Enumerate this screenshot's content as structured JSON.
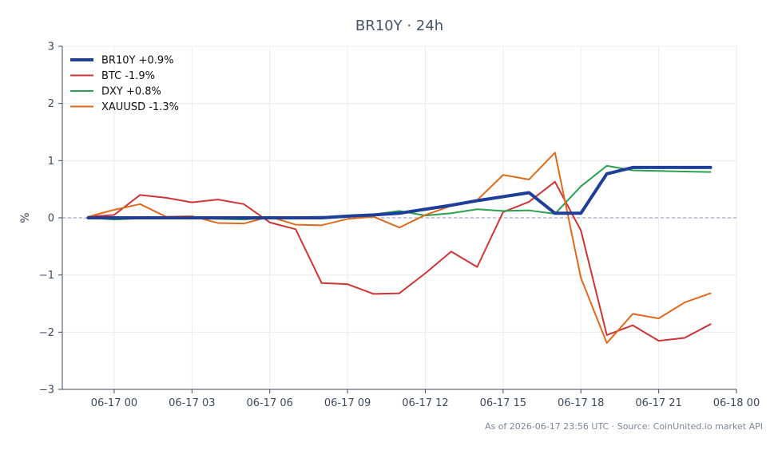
{
  "chart_data": {
    "type": "line",
    "title": "BR10Y · 24h",
    "xlabel": "",
    "ylabel": "%",
    "ylim": [
      -3,
      3
    ],
    "yticks": [
      -3,
      -2,
      -1,
      0,
      1,
      2,
      3
    ],
    "ytick_labels": [
      "−3",
      "−2",
      "−1",
      "0",
      "1",
      "2",
      "3"
    ],
    "xlim": [
      "2026-06-16 22:00",
      "2026-06-18 00:00"
    ],
    "xticks": [
      "2026-06-17 00:00",
      "2026-06-17 03:00",
      "2026-06-17 06:00",
      "2026-06-17 09:00",
      "2026-06-17 12:00",
      "2026-06-17 15:00",
      "2026-06-17 18:00",
      "2026-06-17 21:00",
      "2026-06-18 00:00"
    ],
    "xtick_labels": [
      "06-17 00",
      "06-17 03",
      "06-17 06",
      "06-17 09",
      "06-17 12",
      "06-17 15",
      "06-17 18",
      "06-17 21",
      "06-18 00"
    ],
    "grid": true,
    "zero_line": true,
    "legend_position": "top-left",
    "x": [
      "2026-06-16 23:00",
      "2026-06-17 00:00",
      "2026-06-17 01:00",
      "2026-06-17 02:00",
      "2026-06-17 03:00",
      "2026-06-17 04:00",
      "2026-06-17 05:00",
      "2026-06-17 06:00",
      "2026-06-17 07:00",
      "2026-06-17 08:00",
      "2026-06-17 09:00",
      "2026-06-17 10:00",
      "2026-06-17 11:00",
      "2026-06-17 12:00",
      "2026-06-17 13:00",
      "2026-06-17 14:00",
      "2026-06-17 15:00",
      "2026-06-17 16:00",
      "2026-06-17 17:00",
      "2026-06-17 18:00",
      "2026-06-17 19:00",
      "2026-06-17 20:00",
      "2026-06-17 21:00",
      "2026-06-17 22:00",
      "2026-06-17 23:00"
    ],
    "series": [
      {
        "name": "BR10Y +0.9%",
        "color": "#1f3e9a",
        "width": 4,
        "values": [
          0.0,
          0.0,
          0.0,
          0.0,
          0.0,
          0.0,
          0.0,
          0.0,
          0.0,
          0.0,
          0.03,
          0.05,
          0.08,
          0.15,
          0.22,
          0.3,
          0.37,
          0.44,
          0.08,
          0.08,
          0.77,
          0.88,
          0.88,
          0.88,
          0.88
        ]
      },
      {
        "name": "BTC -1.9%",
        "color": "#d03434",
        "width": 2,
        "values": [
          0.02,
          0.05,
          0.4,
          0.35,
          0.27,
          0.32,
          0.24,
          -0.08,
          -0.2,
          -1.14,
          -1.16,
          -1.33,
          -1.32,
          -0.97,
          -0.59,
          -0.86,
          0.1,
          0.28,
          0.63,
          -0.22,
          -2.05,
          -1.88,
          -2.15,
          -2.1,
          -1.86
        ]
      },
      {
        "name": "DXY +0.8%",
        "color": "#2aa14e",
        "width": 2,
        "values": [
          0.0,
          -0.03,
          -0.01,
          0.0,
          -0.01,
          -0.02,
          -0.03,
          0.0,
          0.01,
          0.02,
          0.02,
          0.06,
          0.12,
          0.04,
          0.08,
          0.15,
          0.12,
          0.13,
          0.07,
          0.55,
          0.91,
          0.83,
          0.82,
          0.81,
          0.8
        ]
      },
      {
        "name": "XAUUSD -1.3%",
        "color": "#e06a1a",
        "width": 2,
        "values": [
          0.02,
          0.14,
          0.24,
          0.02,
          0.03,
          -0.09,
          -0.1,
          0.02,
          -0.12,
          -0.13,
          -0.02,
          0.02,
          -0.17,
          0.05,
          0.21,
          0.31,
          0.75,
          0.67,
          1.14,
          -1.05,
          -2.19,
          -1.68,
          -1.76,
          -1.48,
          -1.32
        ]
      }
    ]
  },
  "footer": "As of 2026-06-17 23:56 UTC · Source: CoinUnited.io market API"
}
